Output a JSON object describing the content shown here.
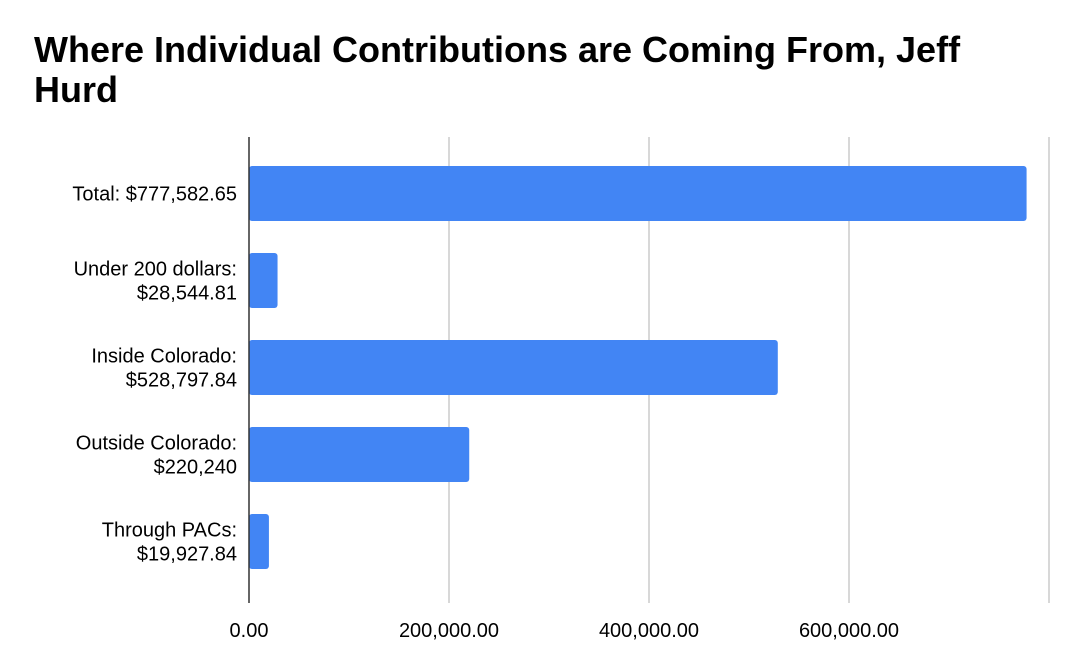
{
  "chart_data": {
    "type": "bar",
    "orientation": "horizontal",
    "title": "Where Individual Contributions are Coming From, Jeff Hurd",
    "categories": [
      [
        "Total: $777,582.65"
      ],
      [
        "Under 200 dollars:",
        "$28,544.81"
      ],
      [
        "Inside Colorado:",
        "$528,797.84"
      ],
      [
        "Outside Colorado:",
        "$220,240"
      ],
      [
        "Through PACs:",
        "$19,927.84"
      ]
    ],
    "values": [
      777582.65,
      28544.81,
      528797.84,
      220240,
      19927.84
    ],
    "xlim": [
      0,
      800000
    ],
    "xticks": [
      0,
      200000,
      400000,
      600000
    ],
    "xtick_labels": [
      "0.00",
      "200,000.00",
      "400,000.00",
      "600,000.00"
    ],
    "grid": true,
    "bar_color": "#4285F4",
    "grid_color": "#cccccc",
    "axis_color": "#333333"
  }
}
